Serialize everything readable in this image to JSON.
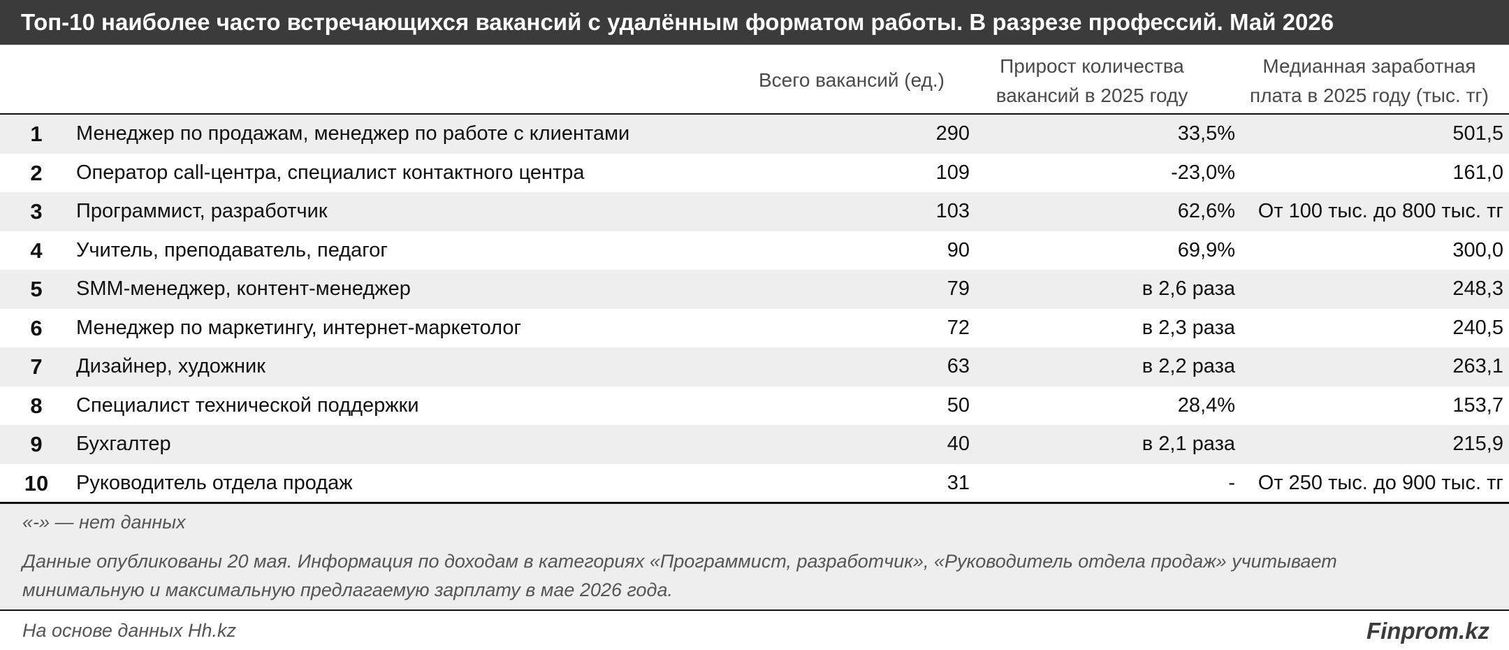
{
  "title": "Топ-10 наиболее часто встречающихся вакансий с удалённым форматом работы. В разрезе профессий. Май 2026",
  "columns": {
    "total": "Всего вакансий (ед.)",
    "growth_line1": "Прирост количества",
    "growth_line2": "вакансий в 2025 году",
    "salary_line1": "Медианная заработная",
    "salary_line2": "плата в 2025 году (тыс. тг)"
  },
  "rows": [
    {
      "rank": "1",
      "name": "Менеджер по продажам, менеджер по работе с клиентами",
      "total": "290",
      "growth": "33,5%",
      "salary": "501,5"
    },
    {
      "rank": "2",
      "name": "Оператор call-центра, специалист контактного центра",
      "total": "109",
      "growth": "-23,0%",
      "salary": "161,0"
    },
    {
      "rank": "3",
      "name": "Программист, разработчик",
      "total": "103",
      "growth": "62,6%",
      "salary": "От 100 тыс. до 800 тыс. тг"
    },
    {
      "rank": "4",
      "name": "Учитель, преподаватель, педагог",
      "total": "90",
      "growth": "69,9%",
      "salary": "300,0"
    },
    {
      "rank": "5",
      "name": "SMM-менеджер, контент-менеджер",
      "total": "79",
      "growth": "в 2,6 раза",
      "salary": "248,3"
    },
    {
      "rank": "6",
      "name": "Менеджер по маркетингу, интернет-маркетолог",
      "total": "72",
      "growth": "в 2,3 раза",
      "salary": "240,5"
    },
    {
      "rank": "7",
      "name": "Дизайнер, художник",
      "total": "63",
      "growth": "в 2,2 раза",
      "salary": "263,1"
    },
    {
      "rank": "8",
      "name": "Специалист технической поддержки",
      "total": "50",
      "growth": "28,4%",
      "salary": "153,7"
    },
    {
      "rank": "9",
      "name": "Бухгалтер",
      "total": "40",
      "growth": "в 2,1 раза",
      "salary": "215,9"
    },
    {
      "rank": "10",
      "name": "Руководитель отдела продаж",
      "total": "31",
      "growth": "-",
      "salary": "От 250 тыс. до 900 тыс. тг"
    }
  ],
  "notes": {
    "no_data": "«-» — нет данных",
    "published_line1": "Данные опубликованы 20 мая. Информация по доходам в категориях «Программист, разработчик», «Руководитель отдела продаж» учитывает",
    "published_line2": "минимальную и максимальную предлагаемую зарплату в мае 2026 года."
  },
  "footer": {
    "source": "На основе данных Hh.kz",
    "brand": "Finprom.kz"
  },
  "colors": {
    "title_bg": "#3b3b3b",
    "stripe": "#eeeeee"
  }
}
